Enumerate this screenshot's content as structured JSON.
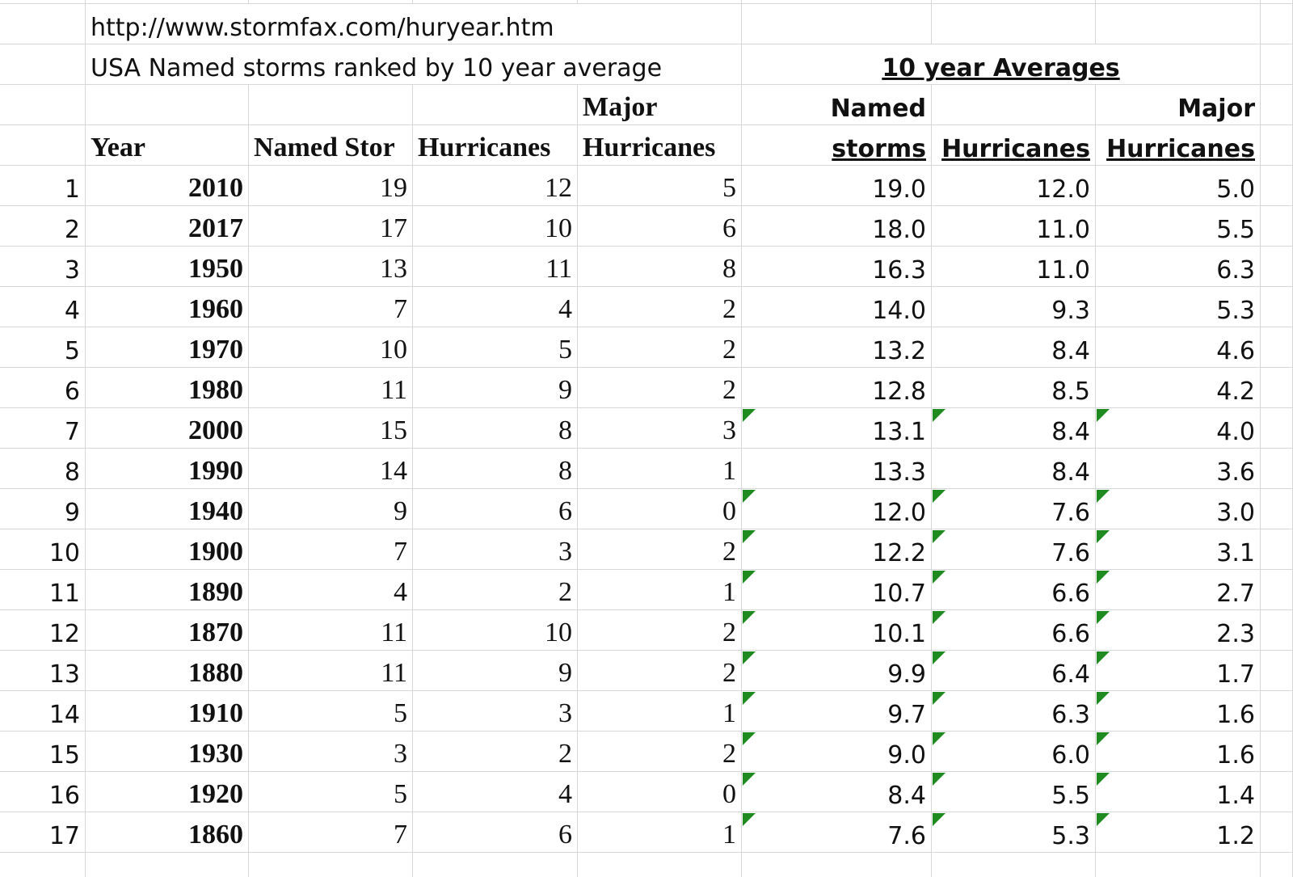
{
  "link": "http://www.stormfax.com/huryear.htm",
  "subtitle": "USA Named storms  ranked by 10 year average",
  "averages_title": "10 year Averages",
  "header_top": [
    "Major",
    "Named",
    "Major"
  ],
  "header_bottom": [
    "Year",
    "Named Stor",
    "Hurricanes",
    "Hurricanes",
    "storms",
    "Hurricanes",
    "Hurricanes"
  ],
  "table": {
    "rows": [
      [
        "1",
        "2010",
        "19",
        "12",
        "5",
        "19.0",
        "12.0",
        "5.0"
      ],
      [
        "2",
        "2017",
        "17",
        "10",
        "6",
        "18.0",
        "11.0",
        "5.5"
      ],
      [
        "3",
        "1950",
        "13",
        "11",
        "8",
        "16.3",
        "11.0",
        "6.3"
      ],
      [
        "4",
        "1960",
        "7",
        "4",
        "2",
        "14.0",
        "9.3",
        "5.3"
      ],
      [
        "5",
        "1970",
        "10",
        "5",
        "2",
        "13.2",
        "8.4",
        "4.6"
      ],
      [
        "6",
        "1980",
        "11",
        "9",
        "2",
        "12.8",
        "8.5",
        "4.2"
      ],
      [
        "7",
        "2000",
        "15",
        "8",
        "3",
        "13.1",
        "8.4",
        "4.0"
      ],
      [
        "8",
        "1990",
        "14",
        "8",
        "1",
        "13.3",
        "8.4",
        "3.6"
      ],
      [
        "9",
        "1940",
        "9",
        "6",
        "0",
        "12.0",
        "7.6",
        "3.0"
      ],
      [
        "10",
        "1900",
        "7",
        "3",
        "2",
        "12.2",
        "7.6",
        "3.1"
      ],
      [
        "11",
        "1890",
        "4",
        "2",
        "1",
        "10.7",
        "6.6",
        "2.7"
      ],
      [
        "12",
        "1870",
        "11",
        "10",
        "2",
        "10.1",
        "6.6",
        "2.3"
      ],
      [
        "13",
        "1880",
        "11",
        "9",
        "2",
        "9.9",
        "6.4",
        "1.7"
      ],
      [
        "14",
        "1910",
        "5",
        "3",
        "1",
        "9.7",
        "6.3",
        "1.6"
      ],
      [
        "15",
        "1930",
        "3",
        "2",
        "2",
        "9.0",
        "6.0",
        "1.6"
      ],
      [
        "16",
        "1920",
        "5",
        "4",
        "0",
        "8.4",
        "5.5",
        "1.4"
      ],
      [
        "17",
        "1860",
        "7",
        "6",
        "1",
        "7.6",
        "5.3",
        "1.2"
      ]
    ]
  }
}
